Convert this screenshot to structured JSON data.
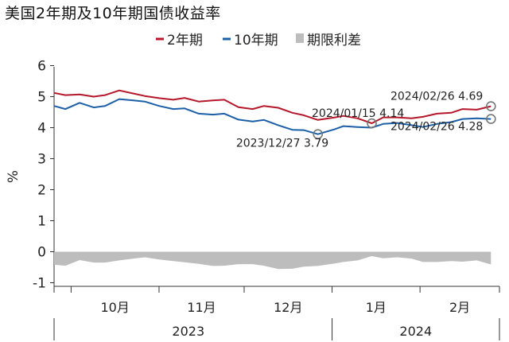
{
  "title": "美国2年期及10年期国债收益率",
  "chart_data": {
    "type": "line",
    "ylabel": "%",
    "ylim": [
      -1,
      6
    ],
    "yticks": [
      "-1",
      "0",
      "1",
      "2",
      "3",
      "4",
      "5",
      "6"
    ],
    "x_start": "2023-09-25",
    "x_end": "2024-02-29",
    "month_labels": [
      "10月",
      "11月",
      "12月",
      "1月",
      "2月"
    ],
    "year_labels": [
      "2023",
      "2024"
    ],
    "legend_position": "top",
    "colors": {
      "two_year": "#b5172b",
      "ten_year": "#1b5fa8",
      "spread": "#bdbdbd"
    },
    "series": [
      {
        "name": "2年期",
        "x": [
          "2023-09-25",
          "2023-09-29",
          "2023-10-04",
          "2023-10-09",
          "2023-10-13",
          "2023-10-18",
          "2023-10-23",
          "2023-10-27",
          "2023-11-01",
          "2023-11-06",
          "2023-11-10",
          "2023-11-15",
          "2023-11-20",
          "2023-11-24",
          "2023-11-29",
          "2023-12-04",
          "2023-12-08",
          "2023-12-13",
          "2023-12-18",
          "2023-12-22",
          "2023-12-27",
          "2024-01-02",
          "2024-01-05",
          "2024-01-10",
          "2024-01-15",
          "2024-01-19",
          "2024-01-24",
          "2024-01-29",
          "2024-02-02",
          "2024-02-07",
          "2024-02-12",
          "2024-02-16",
          "2024-02-21",
          "2024-02-26"
        ],
        "values": [
          5.12,
          5.05,
          5.07,
          5.0,
          5.05,
          5.2,
          5.1,
          5.02,
          4.95,
          4.9,
          4.96,
          4.84,
          4.88,
          4.9,
          4.66,
          4.6,
          4.7,
          4.64,
          4.48,
          4.4,
          4.25,
          4.33,
          4.38,
          4.3,
          4.14,
          4.33,
          4.33,
          4.3,
          4.35,
          4.45,
          4.48,
          4.6,
          4.58,
          4.69
        ]
      },
      {
        "name": "10年期",
        "x": [
          "2023-09-25",
          "2023-09-29",
          "2023-10-04",
          "2023-10-09",
          "2023-10-13",
          "2023-10-18",
          "2023-10-23",
          "2023-10-27",
          "2023-11-01",
          "2023-11-06",
          "2023-11-10",
          "2023-11-15",
          "2023-11-20",
          "2023-11-24",
          "2023-11-29",
          "2023-12-04",
          "2023-12-08",
          "2023-12-13",
          "2023-12-18",
          "2023-12-22",
          "2023-12-27",
          "2024-01-02",
          "2024-01-05",
          "2024-01-10",
          "2024-01-15",
          "2024-01-19",
          "2024-01-24",
          "2024-01-29",
          "2024-02-02",
          "2024-02-07",
          "2024-02-12",
          "2024-02-16",
          "2024-02-21",
          "2024-02-26"
        ],
        "values": [
          4.7,
          4.6,
          4.8,
          4.65,
          4.7,
          4.92,
          4.88,
          4.84,
          4.7,
          4.6,
          4.62,
          4.45,
          4.42,
          4.45,
          4.26,
          4.2,
          4.25,
          4.08,
          3.93,
          3.92,
          3.79,
          3.95,
          4.05,
          4.02,
          4.0,
          4.12,
          4.15,
          4.08,
          4.02,
          4.12,
          4.18,
          4.28,
          4.3,
          4.28
        ]
      },
      {
        "name": "期限利差",
        "x": [
          "2023-09-25",
          "2023-09-29",
          "2023-10-04",
          "2023-10-09",
          "2023-10-13",
          "2023-10-18",
          "2023-10-23",
          "2023-10-27",
          "2023-11-01",
          "2023-11-06",
          "2023-11-10",
          "2023-11-15",
          "2023-11-20",
          "2023-11-24",
          "2023-11-29",
          "2023-12-04",
          "2023-12-08",
          "2023-12-13",
          "2023-12-18",
          "2023-12-22",
          "2023-12-27",
          "2024-01-02",
          "2024-01-05",
          "2024-01-10",
          "2024-01-15",
          "2024-01-19",
          "2024-01-24",
          "2024-01-29",
          "2024-02-02",
          "2024-02-07",
          "2024-02-12",
          "2024-02-16",
          "2024-02-21",
          "2024-02-26"
        ],
        "values": [
          -0.42,
          -0.45,
          -0.27,
          -0.35,
          -0.35,
          -0.28,
          -0.22,
          -0.18,
          -0.25,
          -0.3,
          -0.34,
          -0.39,
          -0.46,
          -0.45,
          -0.4,
          -0.4,
          -0.45,
          -0.56,
          -0.55,
          -0.48,
          -0.46,
          -0.38,
          -0.33,
          -0.28,
          -0.14,
          -0.21,
          -0.18,
          -0.22,
          -0.33,
          -0.33,
          -0.3,
          -0.32,
          -0.28,
          -0.41
        ]
      }
    ],
    "annotations": [
      {
        "label": "2024/02/26 4.69",
        "x": "2024-02-26",
        "y": 4.69,
        "series": 0
      },
      {
        "label": "2024/02/26 4.28",
        "x": "2024-02-26",
        "y": 4.28,
        "series": 1
      },
      {
        "label": "2024/01/15 4.14",
        "x": "2024-01-15",
        "y": 4.14,
        "series": 0
      },
      {
        "label": "2023/12/27 3.79",
        "x": "2023-12-27",
        "y": 3.79,
        "series": 1
      }
    ]
  }
}
